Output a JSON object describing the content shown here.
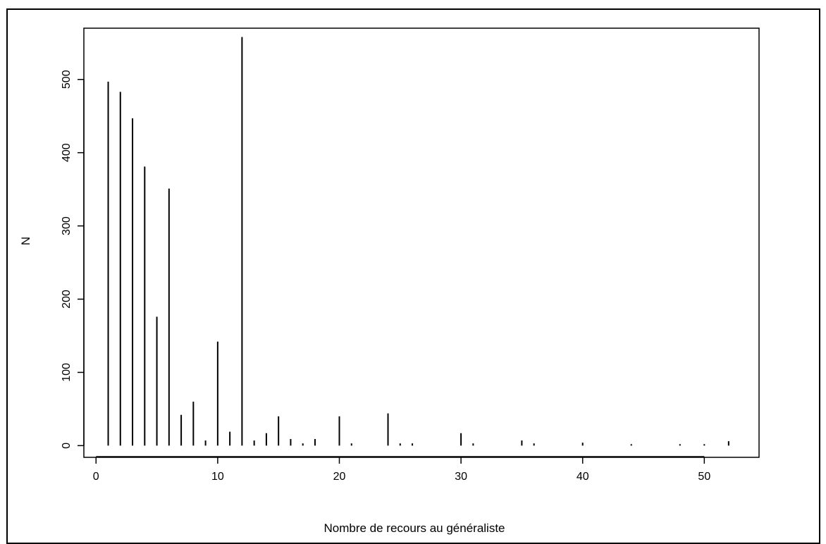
{
  "chart_data": {
    "type": "bar",
    "style": "spike",
    "title": "",
    "xlabel": "Nombre de recours au généraliste",
    "ylabel": "N",
    "xlim": [
      -1,
      54.5
    ],
    "ylim": [
      -16,
      570
    ],
    "xticks": [
      0,
      10,
      20,
      30,
      40,
      50
    ],
    "yticks": [
      0,
      100,
      200,
      300,
      400,
      500
    ],
    "grid": false,
    "legend": "none",
    "x": [
      1,
      2,
      3,
      4,
      5,
      6,
      7,
      8,
      9,
      10,
      11,
      12,
      13,
      14,
      15,
      16,
      17,
      18,
      20,
      21,
      24,
      25,
      26,
      30,
      31,
      35,
      36,
      40,
      44,
      48,
      50,
      52
    ],
    "values": [
      497,
      483,
      447,
      381,
      176,
      351,
      42,
      60,
      7,
      142,
      19,
      558,
      7,
      17,
      40,
      9,
      3,
      9,
      40,
      3,
      44,
      3,
      3,
      17,
      3,
      7,
      3,
      4,
      2,
      2,
      2,
      6
    ]
  },
  "colors": {
    "line": "#000000",
    "background": "#ffffff"
  }
}
